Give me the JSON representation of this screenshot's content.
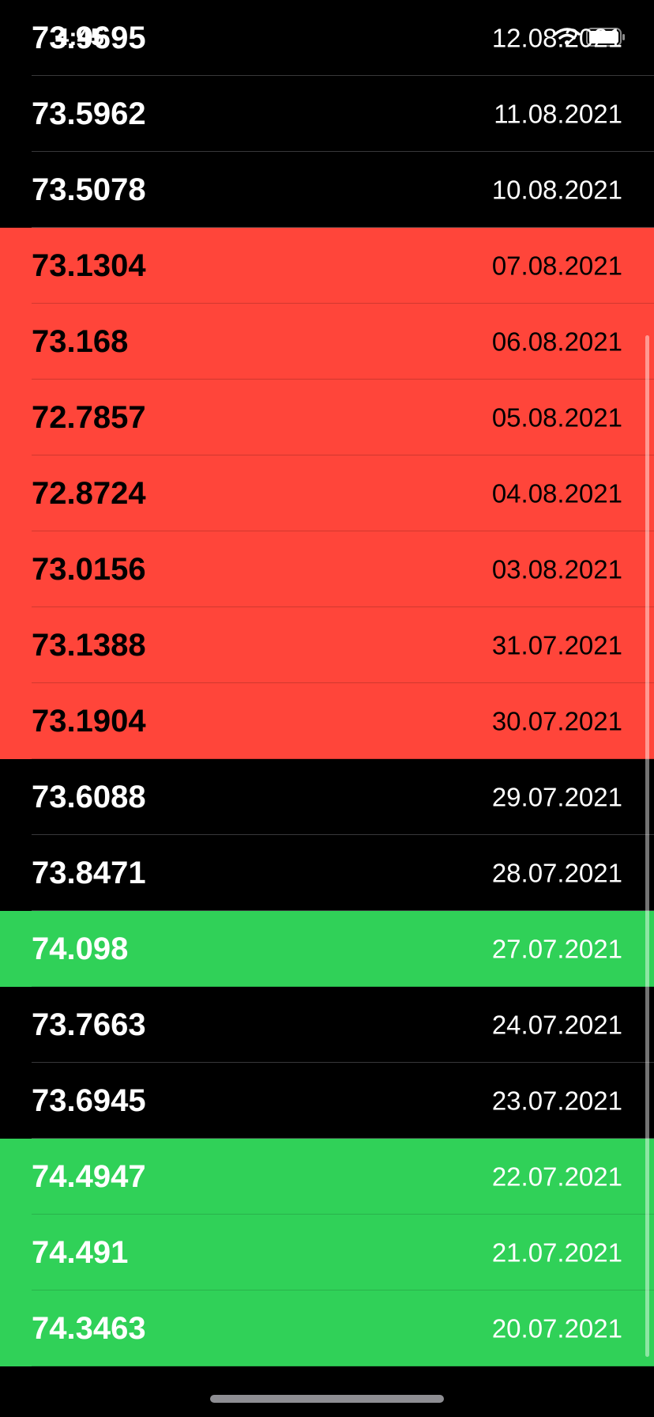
{
  "status_bar": {
    "time": "4:45",
    "wifi_icon": "wifi-icon",
    "battery_icon": "battery-icon"
  },
  "colors": {
    "down": "#ff453a",
    "up": "#30d158",
    "neutral": "#000000"
  },
  "rates": [
    {
      "value": "73.9695",
      "date": "12.08.2021",
      "trend": "neutral"
    },
    {
      "value": "73.5962",
      "date": "11.08.2021",
      "trend": "neutral"
    },
    {
      "value": "73.5078",
      "date": "10.08.2021",
      "trend": "neutral"
    },
    {
      "value": "73.1304",
      "date": "07.08.2021",
      "trend": "down"
    },
    {
      "value": "73.168",
      "date": "06.08.2021",
      "trend": "down"
    },
    {
      "value": "72.7857",
      "date": "05.08.2021",
      "trend": "down"
    },
    {
      "value": "72.8724",
      "date": "04.08.2021",
      "trend": "down"
    },
    {
      "value": "73.0156",
      "date": "03.08.2021",
      "trend": "down"
    },
    {
      "value": "73.1388",
      "date": "31.07.2021",
      "trend": "down"
    },
    {
      "value": "73.1904",
      "date": "30.07.2021",
      "trend": "down"
    },
    {
      "value": "73.6088",
      "date": "29.07.2021",
      "trend": "neutral"
    },
    {
      "value": "73.8471",
      "date": "28.07.2021",
      "trend": "neutral"
    },
    {
      "value": "74.098",
      "date": "27.07.2021",
      "trend": "up"
    },
    {
      "value": "73.7663",
      "date": "24.07.2021",
      "trend": "neutral"
    },
    {
      "value": "73.6945",
      "date": "23.07.2021",
      "trend": "neutral"
    },
    {
      "value": "74.4947",
      "date": "22.07.2021",
      "trend": "up"
    },
    {
      "value": "74.491",
      "date": "21.07.2021",
      "trend": "up"
    },
    {
      "value": "74.3463",
      "date": "20.07.2021",
      "trend": "up"
    }
  ]
}
